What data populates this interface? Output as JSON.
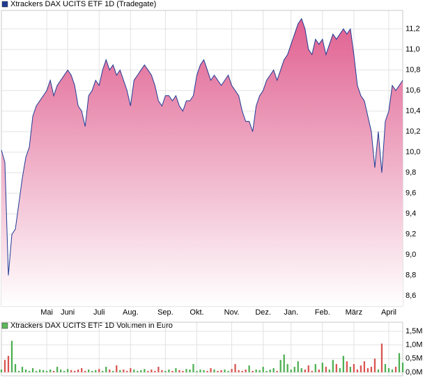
{
  "chart_data": [
    {
      "type": "area",
      "title": "Xtrackers DAX UCITS ETF 1D (Tradegate)",
      "legend_color": "#1f3a93",
      "color": "#1f3a93",
      "fill_top": "#e06090",
      "fill_bottom": "#ffffff",
      "grid": true,
      "categories": [
        null,
        null,
        null,
        null,
        null,
        null,
        null,
        null,
        null,
        null,
        null,
        null,
        null,
        "Mai",
        null,
        null,
        null,
        null,
        null,
        "Juni",
        null,
        null,
        null,
        null,
        null,
        null,
        null,
        null,
        "Juli",
        null,
        null,
        null,
        null,
        null,
        null,
        null,
        null,
        "Aug.",
        null,
        null,
        null,
        null,
        null,
        null,
        null,
        null,
        null,
        "Sep.",
        null,
        null,
        null,
        null,
        null,
        null,
        null,
        null,
        "Okt.",
        null,
        null,
        null,
        null,
        null,
        null,
        null,
        null,
        null,
        "Nov.",
        null,
        null,
        null,
        null,
        null,
        null,
        null,
        null,
        "Dez.",
        null,
        null,
        null,
        null,
        null,
        null,
        null,
        "Jan.",
        null,
        null,
        null,
        null,
        null,
        null,
        null,
        null,
        "Feb.",
        null,
        null,
        null,
        null,
        null,
        null,
        null,
        null,
        "März",
        null,
        null,
        null,
        null,
        null,
        null,
        null,
        null,
        null,
        "April",
        null,
        null,
        null,
        null
      ],
      "values": [
        10.02,
        9.9,
        8.8,
        9.2,
        9.25,
        9.5,
        9.75,
        9.95,
        10.05,
        10.35,
        10.45,
        10.5,
        10.55,
        10.6,
        10.7,
        10.55,
        10.65,
        10.7,
        10.75,
        10.8,
        10.75,
        10.65,
        10.45,
        10.4,
        10.25,
        10.55,
        10.6,
        10.7,
        10.65,
        10.8,
        10.9,
        10.8,
        10.85,
        10.75,
        10.8,
        10.7,
        10.6,
        10.45,
        10.7,
        10.75,
        10.8,
        10.85,
        10.8,
        10.75,
        10.65,
        10.5,
        10.45,
        10.55,
        10.55,
        10.5,
        10.55,
        10.45,
        10.4,
        10.5,
        10.5,
        10.55,
        10.75,
        10.85,
        10.9,
        10.8,
        10.7,
        10.75,
        10.7,
        10.65,
        10.7,
        10.75,
        10.65,
        10.6,
        10.55,
        10.4,
        10.3,
        10.3,
        10.2,
        10.45,
        10.55,
        10.6,
        10.7,
        10.75,
        10.8,
        10.7,
        10.8,
        10.9,
        10.95,
        11.05,
        11.15,
        11.25,
        11.3,
        11.2,
        11.0,
        10.95,
        11.1,
        11.05,
        11.1,
        10.95,
        11.05,
        11.15,
        11.1,
        11.15,
        11.2,
        11.15,
        11.2,
        10.95,
        10.65,
        10.55,
        10.5,
        10.35,
        10.2,
        9.85,
        10.2,
        9.8,
        10.3,
        10.4,
        10.65,
        10.6,
        10.65,
        10.7
      ],
      "ylim": [
        8.5,
        11.38
      ],
      "yticks": [
        {
          "value": 8.6,
          "label": "8,6"
        },
        {
          "value": 8.8,
          "label": "8,8"
        },
        {
          "value": 9.0,
          "label": "9,0"
        },
        {
          "value": 9.2,
          "label": "9,2"
        },
        {
          "value": 9.4,
          "label": "9,4"
        },
        {
          "value": 9.6,
          "label": "9,6"
        },
        {
          "value": 9.8,
          "label": "9,8"
        },
        {
          "value": 10.0,
          "label": "10,0"
        },
        {
          "value": 10.2,
          "label": "10,2"
        },
        {
          "value": 10.4,
          "label": "10,4"
        },
        {
          "value": 10.6,
          "label": "10,6"
        },
        {
          "value": 10.8,
          "label": "10,8"
        },
        {
          "value": 11.0,
          "label": "11,0"
        },
        {
          "value": 11.2,
          "label": "11,2"
        }
      ]
    },
    {
      "type": "bar",
      "title": "Xtrackers DAX UCITS ETF 1D Volumen in Euro",
      "legend_color": "#5cb85c",
      "up_color": "#4caf50",
      "down_color": "#d9534f",
      "grid": true,
      "values": [
        0.1,
        0.45,
        0.6,
        1.15,
        0.3,
        0.05,
        0.2,
        0.1,
        0.05,
        0.15,
        0.05,
        0.1,
        0.08,
        0.05,
        0.1,
        0.05,
        0.2,
        0.1,
        0.05,
        0.12,
        0.08,
        0.05,
        0.1,
        0.15,
        0.05,
        0.1,
        0.05,
        0.08,
        0.12,
        0.05,
        0.2,
        0.1,
        0.05,
        0.25,
        0.08,
        0.1,
        0.05,
        0.15,
        0.1,
        0.05,
        0.08,
        0.12,
        0.05,
        0.1,
        0.05,
        0.2,
        0.08,
        0.05,
        0.1,
        0.05,
        0.15,
        0.08,
        0.05,
        0.12,
        0.1,
        0.3,
        0.05,
        0.1,
        0.08,
        0.05,
        0.15,
        0.1,
        0.05,
        0.08,
        0.1,
        0.05,
        0.12,
        0.3,
        0.08,
        0.05,
        0.1,
        0.25,
        0.05,
        0.1,
        0.08,
        0.2,
        0.05,
        0.1,
        0.15,
        0.05,
        0.45,
        0.65,
        0.3,
        0.1,
        0.2,
        0.4,
        0.15,
        0.1,
        0.25,
        0.05,
        0.3,
        0.1,
        0.35,
        0.2,
        0.1,
        0.45,
        0.3,
        0.15,
        0.6,
        0.4,
        0.2,
        0.3,
        0.1,
        0.25,
        0.4,
        0.15,
        0.2,
        0.5,
        0.1,
        1.05,
        0.3,
        0.15,
        0.1,
        0.2,
        0.7,
        0.35
      ],
      "ylim": [
        -0.13,
        1.83
      ],
      "yticks": [
        {
          "value": 0,
          "label": "0,0M"
        },
        {
          "value": 0.5,
          "label": "0,5M"
        },
        {
          "value": 1.0,
          "label": "1,0M"
        },
        {
          "value": 1.5,
          "label": "1,5M"
        }
      ]
    }
  ]
}
